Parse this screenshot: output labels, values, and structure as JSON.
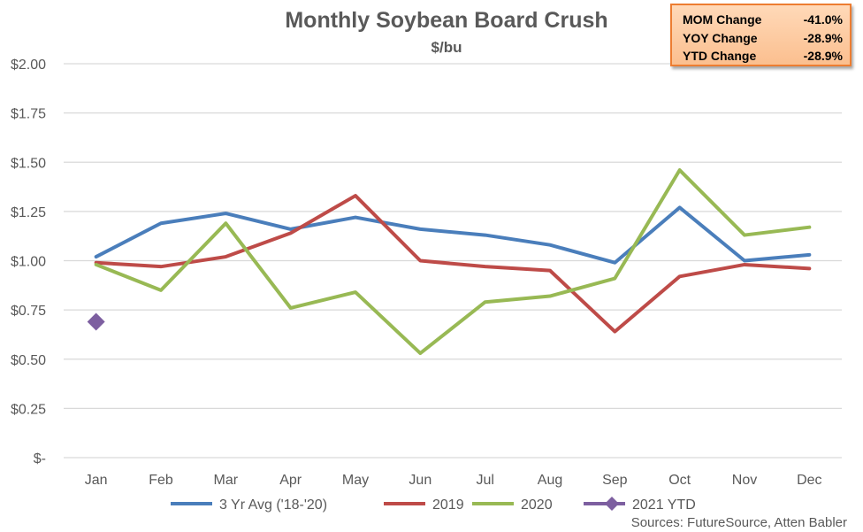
{
  "chart_data": {
    "type": "line",
    "title": "Monthly Soybean Board Crush",
    "subtitle": "$/bu",
    "categories": [
      "Jan",
      "Feb",
      "Mar",
      "Apr",
      "May",
      "Jun",
      "Jul",
      "Aug",
      "Sep",
      "Oct",
      "Nov",
      "Dec"
    ],
    "y_ticks": [
      "$-",
      "$0.25",
      "$0.50",
      "$0.75",
      "$1.00",
      "$1.25",
      "$1.50",
      "$1.75",
      "$2.00"
    ],
    "ylim": [
      0,
      2.0
    ],
    "grid": true,
    "legend_position": "bottom",
    "series": [
      {
        "name": "3 Yr Avg ('18-'20)",
        "color": "#4a7ebb",
        "marker": "none",
        "values": [
          1.02,
          1.19,
          1.24,
          1.16,
          1.22,
          1.16,
          1.13,
          1.08,
          0.99,
          1.27,
          1.0,
          1.03
        ]
      },
      {
        "name": "2019",
        "color": "#be4b48",
        "marker": "none",
        "values": [
          0.99,
          0.97,
          1.02,
          1.14,
          1.33,
          1.0,
          0.97,
          0.95,
          0.64,
          0.92,
          0.98,
          0.96
        ]
      },
      {
        "name": "2020",
        "color": "#98b954",
        "marker": "none",
        "values": [
          0.98,
          0.85,
          1.19,
          0.76,
          0.84,
          0.53,
          0.79,
          0.82,
          0.91,
          1.46,
          1.13,
          1.17
        ]
      },
      {
        "name": "2021 YTD",
        "color": "#7d5fa0",
        "marker": "diamond",
        "values": [
          0.69,
          null,
          null,
          null,
          null,
          null,
          null,
          null,
          null,
          null,
          null,
          null
        ]
      }
    ],
    "source": "Sources: FutureSource, Atten Babler"
  },
  "stats_box": {
    "rows": [
      {
        "label": "MOM Change",
        "value": "-41.0%"
      },
      {
        "label": "YOY Change",
        "value": "-28.9%"
      },
      {
        "label": "YTD Change",
        "value": "-28.9%"
      }
    ],
    "colors": {
      "border": "#ed7d31",
      "fill": "#fbc799"
    }
  }
}
